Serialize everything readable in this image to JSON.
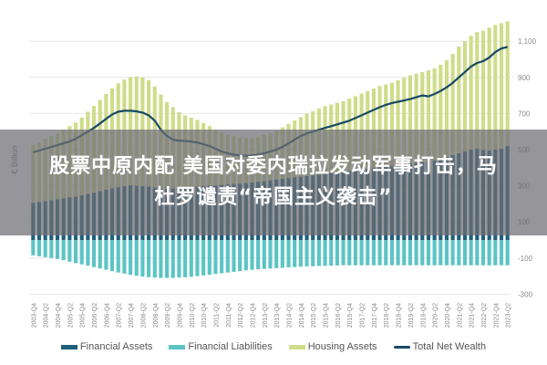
{
  "overlay": {
    "line1": "股票中原内配 美国对委内瑞拉发动军事打击，马",
    "line2": "杜罗谴责“帝国主义袭击”"
  },
  "legend": [
    {
      "label": "Financial Assets",
      "color": "#1f5f7a",
      "type": "bar"
    },
    {
      "label": "Financial Liabilities",
      "color": "#5cc4c4",
      "type": "bar"
    },
    {
      "label": "Housing Assets",
      "color": "#cfdc8a",
      "type": "bar"
    },
    {
      "label": "Total Net Wealth",
      "color": "#174a63",
      "type": "line"
    }
  ],
  "chart_data": {
    "type": "bar",
    "title": "",
    "xlabel": "",
    "ylabel": "€ Billion",
    "ylim": [
      -300,
      1200
    ],
    "yticks": [
      1100,
      900,
      700,
      500,
      300,
      100,
      -100,
      -300
    ],
    "ytick_labels": [
      "1,100",
      "900",
      "700",
      "500",
      "300",
      "100",
      "-100",
      "-300"
    ],
    "grid": true,
    "legend_position": "bottom",
    "stacked": true,
    "x_tick_labels": [
      "2003-Q4",
      "2004-Q2",
      "2004-Q4",
      "2005-Q2",
      "2005-Q4",
      "2006-Q2",
      "2006-Q4",
      "2007-Q2",
      "2007-Q4",
      "2008-Q2",
      "2008-Q4",
      "2009-Q2",
      "2009-Q4",
      "2010-Q2",
      "2010-Q4",
      "2011-Q2",
      "2011-Q4",
      "2012-Q2",
      "2012-Q4",
      "2013-Q2",
      "2013-Q4",
      "2014-Q2",
      "2014-Q4",
      "2015-Q2",
      "2015-Q4",
      "2016-Q2",
      "2016-Q4",
      "2017-Q2",
      "2017-Q4",
      "2018-Q2",
      "2018-Q4",
      "2019-Q2",
      "2019-Q4",
      "2020-Q2",
      "2020-Q4",
      "2021-Q2",
      "2021-Q4",
      "2022-Q2",
      "2022-Q4",
      "2023-Q2"
    ],
    "categories": [
      "2003-Q4",
      "2004-Q1",
      "2004-Q2",
      "2004-Q3",
      "2004-Q4",
      "2005-Q1",
      "2005-Q2",
      "2005-Q3",
      "2005-Q4",
      "2006-Q1",
      "2006-Q2",
      "2006-Q3",
      "2006-Q4",
      "2007-Q1",
      "2007-Q2",
      "2007-Q3",
      "2007-Q4",
      "2008-Q1",
      "2008-Q2",
      "2008-Q3",
      "2008-Q4",
      "2009-Q1",
      "2009-Q2",
      "2009-Q3",
      "2009-Q4",
      "2010-Q1",
      "2010-Q2",
      "2010-Q3",
      "2010-Q4",
      "2011-Q1",
      "2011-Q2",
      "2011-Q3",
      "2011-Q4",
      "2012-Q1",
      "2012-Q2",
      "2012-Q3",
      "2012-Q4",
      "2013-Q1",
      "2013-Q2",
      "2013-Q3",
      "2013-Q4",
      "2014-Q1",
      "2014-Q2",
      "2014-Q3",
      "2014-Q4",
      "2015-Q1",
      "2015-Q2",
      "2015-Q3",
      "2015-Q4",
      "2016-Q1",
      "2016-Q2",
      "2016-Q3",
      "2016-Q4",
      "2017-Q1",
      "2017-Q2",
      "2017-Q3",
      "2017-Q4",
      "2018-Q1",
      "2018-Q2",
      "2018-Q3",
      "2018-Q4",
      "2019-Q1",
      "2019-Q2",
      "2019-Q3",
      "2019-Q4",
      "2020-Q1",
      "2020-Q2",
      "2020-Q3",
      "2020-Q4",
      "2021-Q1",
      "2021-Q2",
      "2021-Q3",
      "2021-Q4",
      "2022-Q1",
      "2022-Q2",
      "2022-Q3",
      "2022-Q4",
      "2023-Q1",
      "2023-Q2"
    ],
    "series": [
      {
        "name": "Financial Assets",
        "color": "#1f5f7a",
        "values": [
          205,
          210,
          215,
          220,
          225,
          230,
          235,
          240,
          248,
          255,
          262,
          270,
          278,
          285,
          292,
          298,
          302,
          300,
          298,
          295,
          290,
          285,
          283,
          285,
          288,
          290,
          292,
          295,
          298,
          300,
          302,
          305,
          308,
          310,
          312,
          315,
          318,
          322,
          326,
          330,
          334,
          338,
          342,
          346,
          350,
          354,
          358,
          362,
          366,
          370,
          374,
          378,
          382,
          386,
          390,
          394,
          398,
          402,
          406,
          410,
          414,
          418,
          422,
          426,
          430,
          434,
          440,
          450,
          460,
          470,
          480,
          490,
          500,
          505,
          498,
          495,
          500,
          505,
          520
        ]
      },
      {
        "name": "Housing Assets",
        "color": "#cfdc8a",
        "values": [
          320,
          330,
          345,
          355,
          365,
          380,
          395,
          410,
          430,
          455,
          480,
          505,
          530,
          555,
          575,
          590,
          600,
          605,
          602,
          590,
          560,
          520,
          480,
          450,
          420,
          400,
          385,
          370,
          350,
          330,
          305,
          290,
          275,
          265,
          255,
          250,
          245,
          250,
          255,
          262,
          270,
          285,
          300,
          315,
          330,
          345,
          355,
          365,
          375,
          380,
          385,
          390,
          400,
          410,
          420,
          430,
          440,
          450,
          455,
          460,
          470,
          480,
          490,
          495,
          500,
          505,
          510,
          520,
          535,
          560,
          590,
          610,
          630,
          645,
          660,
          680,
          690,
          695,
          690
        ]
      },
      {
        "name": "Financial Liabilities",
        "color": "#5cc4c4",
        "values": [
          -85,
          -90,
          -95,
          -100,
          -105,
          -112,
          -120,
          -128,
          -135,
          -142,
          -150,
          -158,
          -165,
          -172,
          -180,
          -186,
          -192,
          -198,
          -202,
          -206,
          -208,
          -210,
          -210,
          -210,
          -208,
          -206,
          -204,
          -200,
          -196,
          -192,
          -188,
          -184,
          -180,
          -176,
          -172,
          -168,
          -165,
          -162,
          -160,
          -158,
          -156,
          -154,
          -152,
          -150,
          -148,
          -146,
          -145,
          -144,
          -143,
          -142,
          -141,
          -140,
          -140,
          -140,
          -140,
          -140,
          -140,
          -140,
          -140,
          -140,
          -140,
          -140,
          -140,
          -140,
          -140,
          -140,
          -140,
          -140,
          -140,
          -140,
          -140,
          -140,
          -140,
          -140,
          -140,
          -140,
          -140,
          -140,
          -140
        ]
      },
      {
        "name": "Total Net Wealth",
        "color": "#174a63",
        "type": "line",
        "values": [
          485,
          495,
          505,
          515,
          525,
          535,
          545,
          560,
          580,
          600,
          620,
          645,
          670,
          695,
          710,
          715,
          715,
          712,
          705,
          690,
          660,
          610,
          575,
          555,
          550,
          548,
          545,
          540,
          530,
          520,
          505,
          490,
          480,
          472,
          468,
          466,
          468,
          472,
          480,
          490,
          500,
          515,
          535,
          555,
          575,
          590,
          600,
          610,
          620,
          630,
          640,
          650,
          660,
          675,
          690,
          705,
          720,
          735,
          748,
          758,
          765,
          772,
          780,
          790,
          800,
          795,
          808,
          825,
          845,
          870,
          900,
          930,
          960,
          980,
          990,
          1010,
          1040,
          1060,
          1068
        ]
      }
    ]
  }
}
